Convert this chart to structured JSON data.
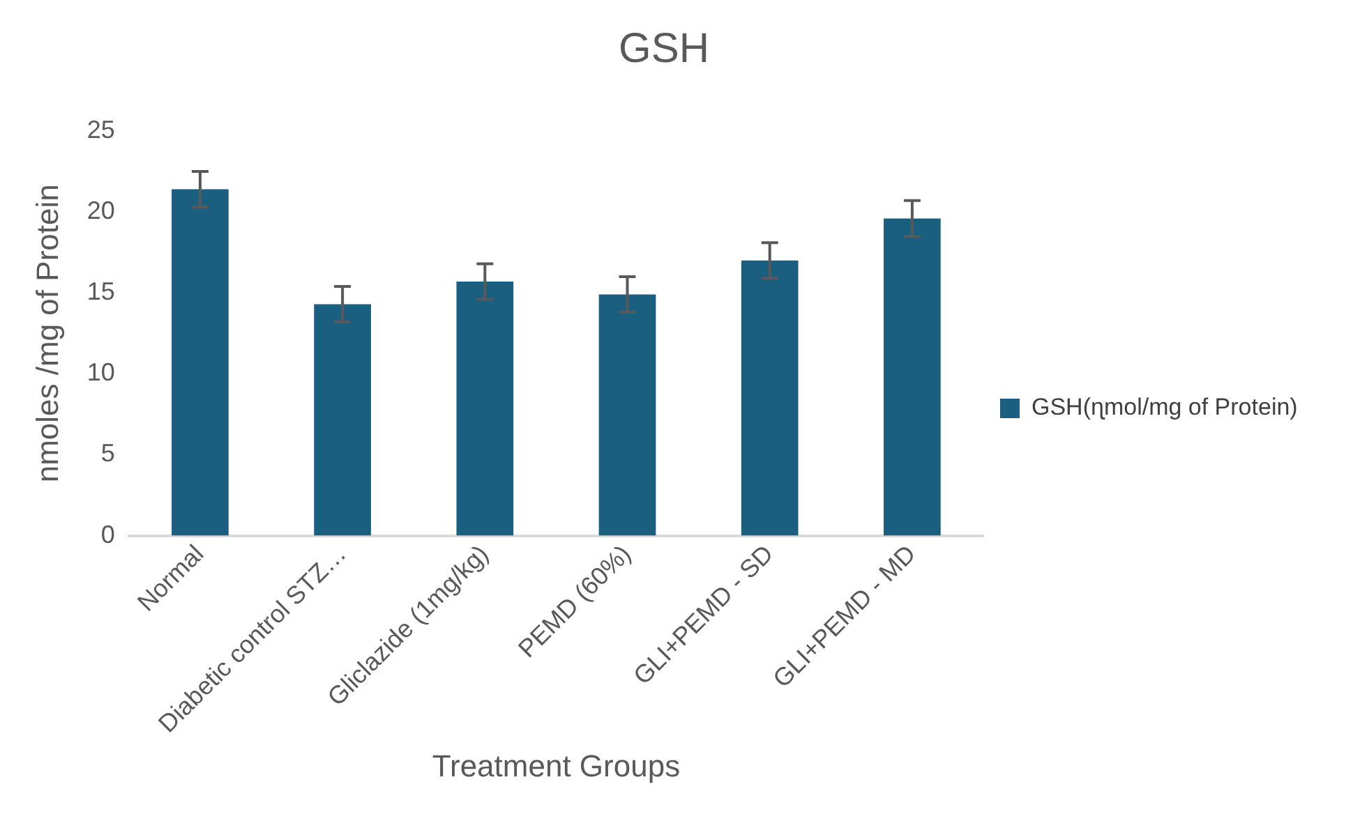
{
  "chart_data": {
    "type": "bar",
    "title": "GSH",
    "xlabel": "Treatment Groups",
    "ylabel": "nmoles /mg of Protein",
    "categories": [
      "Normal",
      "Diabetic control STZ…",
      "Gliclazide (1mg/kg)",
      "PEMD (60%)",
      "GLI+PEMD - SD",
      "GLI+PEMD - MD"
    ],
    "series": [
      {
        "name": "GSH(ɳmol/mg of Protein)",
        "color": "#1a5e80",
        "values": [
          21.4,
          14.3,
          15.7,
          14.9,
          17.0,
          19.6
        ],
        "errors": [
          1.1,
          1.1,
          1.1,
          1.1,
          1.1,
          1.1
        ]
      }
    ],
    "ylim": [
      0,
      25
    ],
    "yticks": [
      0,
      5,
      10,
      15,
      20,
      25
    ],
    "grid": false,
    "legend": "right"
  }
}
